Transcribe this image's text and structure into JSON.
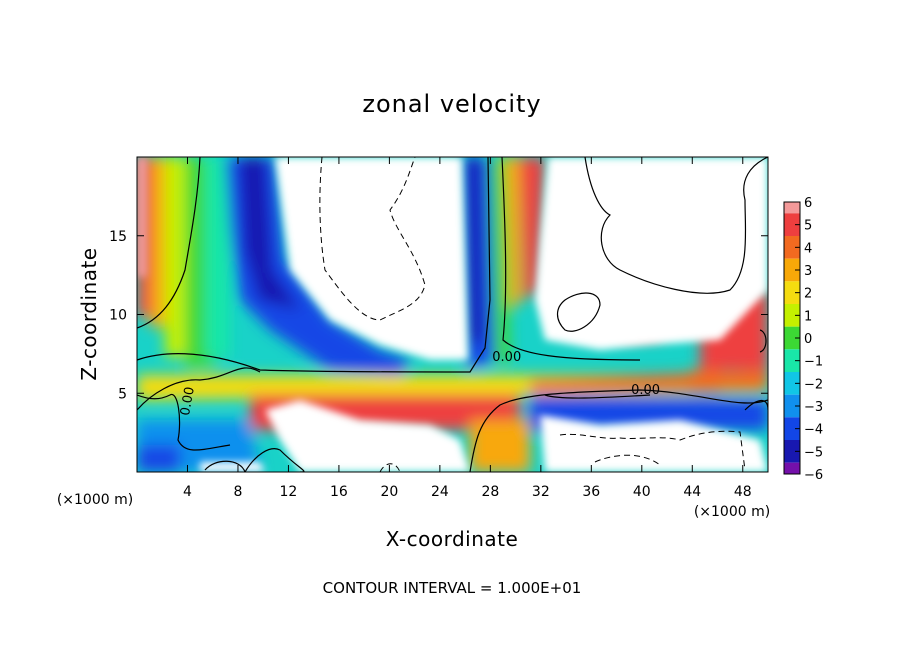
{
  "chart_data": {
    "type": "heatmap",
    "title": "zonal velocity",
    "xlabel": "X-coordinate",
    "ylabel": "Z-coordinate",
    "x_unit_label": "(×1000 m)",
    "z_unit_label": "(×1000 m)",
    "footer": "CONTOUR INTERVAL = 1.000E+01",
    "xlim": [
      0,
      50
    ],
    "ylim": [
      0,
      20
    ],
    "x_ticks": [
      4,
      8,
      12,
      16,
      20,
      24,
      28,
      32,
      36,
      40,
      44,
      48
    ],
    "y_ticks": [
      5,
      10,
      15
    ],
    "colorbar": {
      "ticks": [
        6,
        5,
        4,
        3,
        2,
        1,
        0,
        -1,
        -2,
        -3,
        -4,
        -5,
        -6
      ],
      "colors": [
        "#f49a9a",
        "#ee3f3f",
        "#f26a20",
        "#f8a808",
        "#f5dc10",
        "#c4f000",
        "#3cd834",
        "#19e6a8",
        "#11c6e6",
        "#1090ee",
        "#1246e6",
        "#1818b0",
        "#7410aa"
      ],
      "saturated_color": "#ffffff"
    },
    "contour_labels": [
      {
        "text": "0.00",
        "x": 29.3,
        "z": 7.3
      },
      {
        "text": "0.00",
        "x": 40.3,
        "z": 5.2
      },
      {
        "text": "0.00",
        "x": 4.0,
        "z": 4.5
      }
    ]
  }
}
